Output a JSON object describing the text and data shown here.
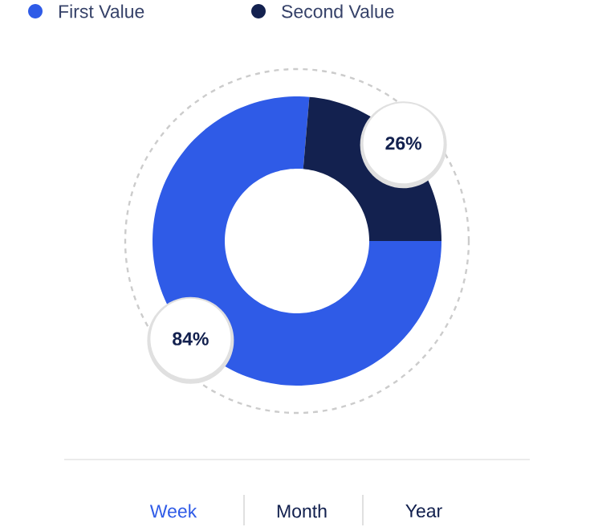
{
  "chart_data": {
    "type": "donut",
    "categories": [
      "First Value",
      "Second Value"
    ],
    "values": [
      84,
      26
    ],
    "colors": [
      "#2f5be7",
      "#13214f"
    ],
    "value_labels": [
      "84%",
      "26%"
    ],
    "legend": "top",
    "annotations": [
      "Week",
      "Month",
      "Year"
    ]
  }
}
